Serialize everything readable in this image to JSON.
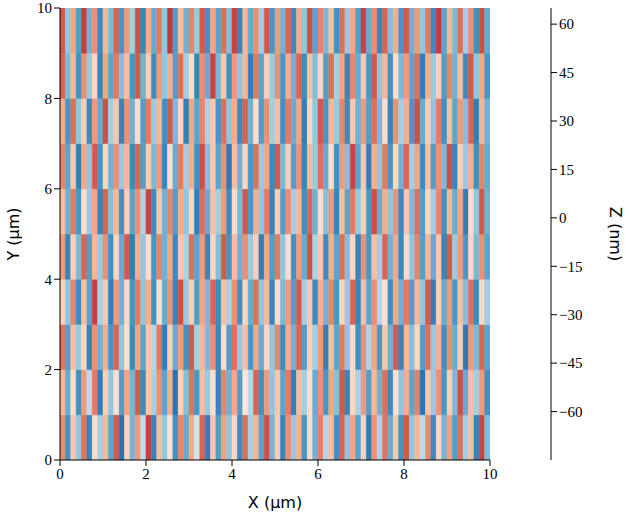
{
  "chart_data": {
    "type": "heatmap",
    "x_label": "X (μm)",
    "y_label": "Y (μm)",
    "xlim": [
      0,
      10
    ],
    "xticks": [
      0,
      2,
      4,
      6,
      8,
      10
    ],
    "ylim": [
      0,
      10
    ],
    "yticks": [
      0,
      2,
      4,
      6,
      8,
      10
    ],
    "colorbar": {
      "label": "Z (nm)",
      "range": [
        -75,
        65
      ],
      "ticks": [
        {
          "value": -60,
          "label": "−60"
        },
        {
          "value": -45,
          "label": "−45"
        },
        {
          "value": -30,
          "label": "−30"
        },
        {
          "value": -15,
          "label": "−15"
        },
        0,
        15,
        30,
        45,
        60
      ]
    },
    "cells": [
      [
        30,
        -45,
        18,
        -30,
        35,
        -50,
        12,
        -25,
        22,
        -40,
        40,
        -55,
        15,
        -35,
        28,
        -20,
        45,
        -50,
        20,
        -30,
        10,
        -45,
        32,
        -38,
        25,
        -15,
        38,
        -52,
        18,
        -42,
        27,
        -30,
        14,
        -48,
        36,
        -25,
        22,
        -40,
        42,
        -35,
        16,
        -50,
        30,
        -28,
        24,
        -44,
        12,
        -36,
        33,
        -22,
        20,
        -46,
        38,
        -30,
        26,
        -40,
        15,
        -52,
        29,
        -24,
        35,
        -38,
        18,
        -45,
        40,
        -30,
        22,
        -20,
        31,
        -48,
        14,
        -35,
        27,
        -42,
        36,
        -26,
        20,
        -50,
        44,
        -33
      ],
      [
        22,
        -38,
        12,
        -46,
        28,
        -20,
        34,
        -52,
        16,
        -30,
        10,
        -42,
        26,
        -35,
        40,
        -48,
        18,
        -25,
        30,
        -40,
        24,
        -55,
        15,
        -32,
        35,
        -44,
        20,
        -28,
        12,
        -50,
        32,
        -36,
        25,
        -42,
        8,
        -22,
        38,
        -46,
        28,
        -30,
        18,
        -40,
        34,
        -52,
        20,
        -26,
        12,
        -38,
        30,
        -44,
        26,
        -32,
        40,
        -50,
        14,
        -24,
        28,
        -42,
        22,
        -36,
        36,
        -48,
        10,
        -30,
        24,
        -40,
        33,
        -55,
        18,
        -28,
        30,
        -44,
        16,
        -34,
        42,
        -38,
        20,
        -26,
        28,
        -46
      ],
      [
        35,
        -42,
        20,
        -28,
        14,
        -50,
        30,
        -36,
        24,
        -44,
        38,
        -30,
        12,
        -48,
        26,
        -40,
        18,
        -22,
        34,
        -52,
        16,
        -38,
        28,
        -46,
        40,
        -26,
        22,
        -34,
        30,
        -50,
        12,
        -42,
        36,
        -28,
        20,
        -44,
        26,
        -38,
        14,
        -30,
        32,
        -48,
        24,
        -36,
        38,
        -42,
        16,
        -26,
        28,
        -52,
        20,
        -40,
        34,
        -30,
        12,
        -46,
        30,
        -24,
        26,
        -44,
        18,
        -36,
        40,
        -50,
        22,
        -32,
        14,
        -42,
        36,
        -28,
        24,
        -46,
        30,
        -38,
        16,
        -54,
        28,
        -34,
        38,
        -40
      ],
      [
        15,
        -30,
        32,
        -48,
        20,
        -40,
        45,
        -25,
        18,
        -52,
        28,
        -36,
        14,
        -44,
        34,
        -30,
        24,
        -46,
        10,
        -38,
        30,
        -50,
        42,
        -28,
        16,
        -42,
        26,
        -34,
        38,
        -48,
        20,
        -24,
        30,
        -46,
        14,
        -38,
        36,
        -30,
        22,
        -50,
        12,
        -34,
        28,
        -42,
        40,
        -26,
        18,
        -48,
        24,
        -36,
        32,
        -44,
        15,
        -28,
        38,
        -50,
        20,
        -40,
        30,
        -22,
        10,
        -46,
        26,
        -36,
        34,
        -42,
        22,
        -30,
        40,
        -52,
        16,
        -38,
        28,
        -44,
        20,
        -32,
        36,
        -48,
        14,
        -26
      ],
      [
        28,
        -50,
        16,
        -34,
        38,
        -42,
        22,
        -28,
        30,
        -46,
        14,
        -38,
        40,
        -52,
        24,
        -30,
        12,
        -44,
        32,
        -36,
        26,
        -48,
        18,
        -24,
        36,
        -40,
        28,
        -50,
        14,
        -32,
        40,
        -44,
        20,
        -36,
        30,
        -28,
        16,
        -52,
        26,
        -42,
        34,
        -30,
        12,
        -46,
        28,
        -38,
        42,
        -24,
        18,
        -48,
        24,
        -40,
        36,
        -32,
        14,
        -50,
        30,
        -44,
        20,
        -26,
        38,
        -36,
        26,
        -48,
        12,
        -30,
        32,
        -42,
        22,
        -38,
        18,
        -50,
        40,
        -28,
        28,
        -44,
        14,
        -34,
        30,
        -40
      ],
      [
        20,
        -36,
        34,
        -44,
        12,
        -28,
        26,
        -50,
        38,
        -32,
        22,
        -46,
        16,
        -40,
        30,
        -24,
        44,
        -48,
        18,
        -36,
        32,
        -42,
        24,
        -30,
        14,
        -52,
        36,
        -38,
        20,
        -26,
        28,
        -48,
        12,
        -34,
        40,
        -44,
        24,
        -30,
        34,
        -50,
        16,
        -42,
        30,
        -26,
        22,
        -46,
        38,
        -36,
        12,
        -32,
        28,
        -50,
        20,
        -40,
        34,
        -28,
        16,
        -44,
        42,
        -38,
        24,
        -30,
        30,
        -48,
        18,
        -34,
        36,
        -42,
        14,
        -26,
        32,
        -46,
        22,
        -38,
        26,
        -52,
        12,
        -30,
        40,
        -36
      ],
      [
        32,
        -40,
        18,
        -52,
        26,
        -30,
        40,
        -44,
        14,
        -36,
        30,
        -28,
        22,
        -48,
        38,
        -42,
        16,
        -34,
        28,
        -50,
        12,
        -38,
        34,
        -26,
        24,
        -46,
        42,
        -32,
        18,
        -40,
        30,
        -54,
        20,
        -36,
        14,
        -44,
        36,
        -28,
        26,
        -48,
        40,
        -34,
        16,
        -42,
        30,
        -50,
        22,
        -28,
        36,
        -38,
        12,
        -46,
        28,
        -32,
        44,
        -40,
        18,
        -52,
        24,
        -30,
        34,
        -44,
        14,
        -36,
        38,
        -26,
        26,
        -48,
        20,
        -42,
        30,
        -34,
        42,
        -50,
        16,
        -28,
        24,
        -46,
        32,
        -38
      ],
      [
        24,
        -44,
        36,
        -30,
        16,
        -48,
        28,
        -38,
        42,
        -26,
        18,
        -50,
        30,
        -36,
        12,
        -42,
        34,
        -28,
        22,
        -46,
        40,
        -34,
        14,
        -52,
        26,
        -40,
        32,
        -24,
        18,
        -44,
        36,
        -30,
        24,
        -48,
        38,
        -36,
        12,
        -42,
        30,
        -26,
        20,
        -46,
        34,
        -38,
        26,
        -52,
        14,
        -30,
        40,
        -44,
        22,
        -28,
        32,
        -48,
        18,
        -36,
        28,
        -42,
        36,
        -34,
        12,
        -50,
        30,
        -26,
        24,
        -44,
        42,
        -38,
        16,
        -30,
        34,
        -46,
        20,
        -40,
        28,
        -32,
        38,
        -52,
        22,
        -36
      ],
      [
        38,
        -34,
        22,
        -46,
        30,
        -28,
        14,
        -50,
        26,
        -40,
        34,
        -32,
        20,
        -44,
        40,
        -36,
        16,
        -48,
        28,
        -30,
        24,
        -42,
        36,
        -26,
        12,
        -50,
        30,
        -38,
        44,
        -34,
        18,
        -46,
        28,
        -30,
        22,
        -52,
        34,
        -40,
        16,
        -28,
        30,
        -44,
        24,
        -36,
        38,
        -48,
        20,
        -32,
        14,
        -42,
        36,
        -26,
        26,
        -50,
        32,
        -38,
        18,
        -44,
        40,
        -30,
        22,
        -46,
        12,
        -34,
        28,
        -40,
        36,
        -52,
        24,
        -28,
        16,
        -42,
        32,
        -36,
        20,
        -48,
        40,
        -30,
        26,
        -44
      ],
      [
        40,
        -30,
        26,
        -42,
        45,
        -36,
        30,
        -48,
        22,
        -34,
        38,
        -44,
        28,
        -26,
        42,
        -50,
        24,
        -38,
        34,
        -30,
        46,
        -42,
        20,
        -36,
        32,
        -28,
        40,
        -46,
        26,
        -40,
        36,
        -32,
        44,
        -50,
        22,
        -38,
        30,
        -26,
        40,
        -44,
        28,
        -36,
        38,
        -48,
        24,
        -30,
        42,
        -40,
        32,
        -34,
        20,
        -46,
        36,
        -28,
        26,
        -42,
        44,
        -38,
        30,
        -50,
        38,
        -32,
        24,
        -44,
        40,
        -36,
        28,
        -30,
        34,
        -48,
        46,
        -40,
        22,
        -34,
        36,
        -26,
        30,
        -46,
        42,
        -38
      ]
    ]
  }
}
